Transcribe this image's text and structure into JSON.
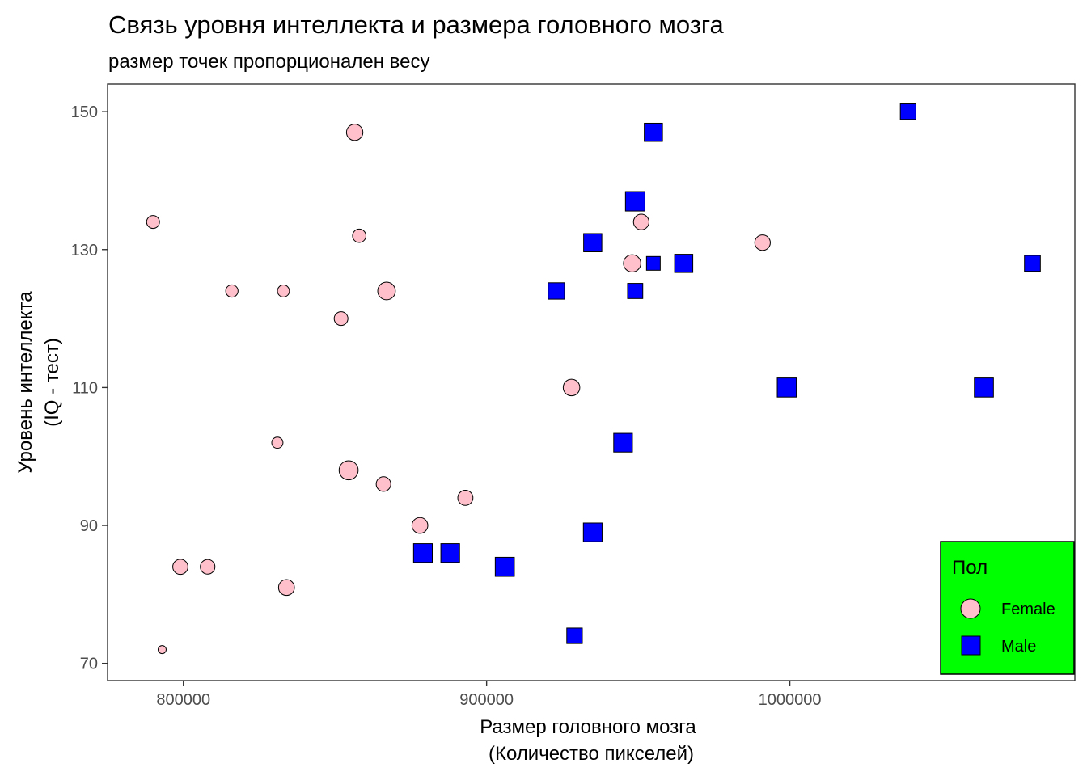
{
  "chart_data": {
    "type": "scatter",
    "title": "Связь уровня интеллекта и размера головного мозга",
    "subtitle": "размер точек пропорционален весу",
    "xlabel_line1": "Размер головного мозга",
    "xlabel_line2": "(Количество пикселей)",
    "ylabel_line1": "Уровень интеллекта",
    "ylabel_line2": "(IQ - тест)",
    "xlim": [
      775000,
      1094000
    ],
    "ylim": [
      67.5,
      154
    ],
    "x_ticks": [
      800000,
      900000,
      1000000
    ],
    "x_tick_labels": [
      "800000",
      "900000",
      "1000000"
    ],
    "y_ticks": [
      70,
      90,
      110,
      130,
      150
    ],
    "y_tick_labels": [
      "70",
      "90",
      "110",
      "130",
      "150"
    ],
    "grid": false,
    "legend": {
      "title": "Пол",
      "placement": "bottom-right inside",
      "background": "#00ff00",
      "entries": [
        "Female",
        "Male"
      ]
    },
    "colors": {
      "Female": "#ffc0cb",
      "Male": "#0000ff"
    },
    "series": [
      {
        "name": "Female",
        "shape": "circle",
        "points": [
          {
            "x": 790000,
            "y": 134,
            "size": 0.45
          },
          {
            "x": 856500,
            "y": 147,
            "size": 0.65
          },
          {
            "x": 858000,
            "y": 132,
            "size": 0.48
          },
          {
            "x": 816000,
            "y": 124,
            "size": 0.42
          },
          {
            "x": 833000,
            "y": 124,
            "size": 0.4
          },
          {
            "x": 867000,
            "y": 124,
            "size": 0.72
          },
          {
            "x": 852000,
            "y": 120,
            "size": 0.5
          },
          {
            "x": 831000,
            "y": 102,
            "size": 0.36
          },
          {
            "x": 854500,
            "y": 98,
            "size": 0.8
          },
          {
            "x": 866000,
            "y": 96,
            "size": 0.55
          },
          {
            "x": 893000,
            "y": 94,
            "size": 0.58
          },
          {
            "x": 878000,
            "y": 90,
            "size": 0.62
          },
          {
            "x": 799000,
            "y": 84,
            "size": 0.58
          },
          {
            "x": 808000,
            "y": 84,
            "size": 0.55
          },
          {
            "x": 834000,
            "y": 81,
            "size": 0.62
          },
          {
            "x": 793000,
            "y": 72,
            "size": 0.18
          },
          {
            "x": 951000,
            "y": 134,
            "size": 0.6
          },
          {
            "x": 948000,
            "y": 128,
            "size": 0.7
          },
          {
            "x": 991000,
            "y": 131,
            "size": 0.6
          },
          {
            "x": 928000,
            "y": 110,
            "size": 0.66
          }
        ]
      },
      {
        "name": "Male",
        "shape": "square",
        "points": [
          {
            "x": 1039000,
            "y": 150,
            "size": 0.6
          },
          {
            "x": 955000,
            "y": 147,
            "size": 0.75
          },
          {
            "x": 949000,
            "y": 137,
            "size": 0.82
          },
          {
            "x": 935000,
            "y": 131,
            "size": 0.75
          },
          {
            "x": 955000,
            "y": 128,
            "size": 0.5
          },
          {
            "x": 965000,
            "y": 128,
            "size": 0.75
          },
          {
            "x": 1080000,
            "y": 128,
            "size": 0.62
          },
          {
            "x": 923000,
            "y": 124,
            "size": 0.65
          },
          {
            "x": 949000,
            "y": 124,
            "size": 0.58
          },
          {
            "x": 999000,
            "y": 110,
            "size": 0.8
          },
          {
            "x": 1064000,
            "y": 110,
            "size": 0.8
          },
          {
            "x": 945000,
            "y": 102,
            "size": 0.78
          },
          {
            "x": 935000,
            "y": 89,
            "size": 0.78
          },
          {
            "x": 879000,
            "y": 86,
            "size": 0.78
          },
          {
            "x": 888000,
            "y": 86,
            "size": 0.78
          },
          {
            "x": 906000,
            "y": 84,
            "size": 0.8
          },
          {
            "x": 929000,
            "y": 74,
            "size": 0.6
          }
        ]
      }
    ]
  }
}
